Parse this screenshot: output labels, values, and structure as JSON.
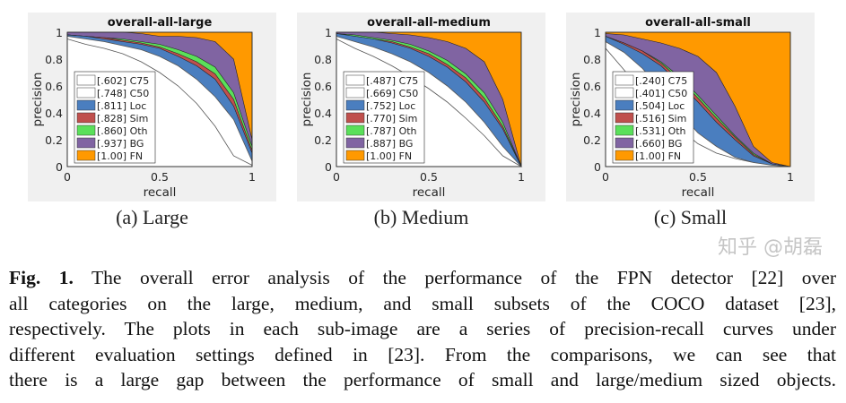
{
  "chart_data": [
    {
      "type": "area",
      "title": "overall-all-large",
      "subcaption": "(a) Large",
      "xlabel": "recall",
      "ylabel": "precision",
      "xlim": [
        0,
        1
      ],
      "ylim": [
        0,
        1
      ],
      "xticks": [
        "0",
        "0.5",
        "1"
      ],
      "yticks": [
        "0",
        "0.2",
        "0.4",
        "0.6",
        "0.8",
        "1"
      ],
      "legend_position": "lower-left",
      "x": [
        0,
        0.1,
        0.2,
        0.3,
        0.4,
        0.5,
        0.6,
        0.7,
        0.8,
        0.9,
        1.0
      ],
      "series": [
        {
          "name": "[1.00] FN",
          "color": "#ff9900",
          "values": [
            1,
            1,
            1,
            1,
            1,
            1,
            1,
            1,
            1,
            1,
            1
          ]
        },
        {
          "name": "[.937] BG",
          "color": "#8064a2",
          "values": [
            1,
            1,
            1,
            1,
            0.99,
            0.97,
            0.97,
            0.96,
            0.93,
            0.8,
            0.2
          ]
        },
        {
          "name": "[.860] Oth",
          "color": "#5ae05a",
          "values": [
            0.98,
            0.97,
            0.96,
            0.95,
            0.93,
            0.91,
            0.87,
            0.82,
            0.74,
            0.55,
            0.15
          ]
        },
        {
          "name": "[.828] Sim",
          "color": "#c0504d",
          "values": [
            0.98,
            0.97,
            0.96,
            0.94,
            0.92,
            0.89,
            0.84,
            0.78,
            0.69,
            0.5,
            0.12
          ]
        },
        {
          "name": "[.811] Loc",
          "color": "#4a7ebf",
          "values": [
            0.98,
            0.97,
            0.95,
            0.93,
            0.91,
            0.88,
            0.82,
            0.75,
            0.65,
            0.45,
            0.1
          ]
        },
        {
          "name": "[.748] C50",
          "color": "#ffffff",
          "values": [
            0.97,
            0.95,
            0.93,
            0.9,
            0.87,
            0.82,
            0.75,
            0.65,
            0.52,
            0.35,
            0.04
          ]
        },
        {
          "name": "[.602] C75",
          "color": "#ffffff",
          "values": [
            0.95,
            0.91,
            0.88,
            0.84,
            0.78,
            0.7,
            0.6,
            0.47,
            0.3,
            0.08,
            0.01
          ]
        }
      ]
    },
    {
      "type": "area",
      "title": "overall-all-medium",
      "subcaption": "(b) Medium",
      "xlabel": "recall",
      "ylabel": "precision",
      "xlim": [
        0,
        1
      ],
      "ylim": [
        0,
        1
      ],
      "xticks": [
        "0",
        "0.5",
        "1"
      ],
      "yticks": [
        "0",
        "0.2",
        "0.4",
        "0.6",
        "0.8",
        "1"
      ],
      "legend_position": "lower-left",
      "x": [
        0,
        0.1,
        0.2,
        0.3,
        0.4,
        0.5,
        0.6,
        0.7,
        0.8,
        0.9,
        1.0
      ],
      "series": [
        {
          "name": "[1.00] FN",
          "color": "#ff9900",
          "values": [
            1,
            1,
            1,
            1,
            1,
            1,
            1,
            1,
            1,
            1,
            1
          ]
        },
        {
          "name": "[.887] BG",
          "color": "#8064a2",
          "values": [
            1,
            1,
            1,
            0.99,
            0.98,
            0.96,
            0.93,
            0.88,
            0.78,
            0.5,
            0
          ]
        },
        {
          "name": "[.787] Oth",
          "color": "#5ae05a",
          "values": [
            0.99,
            0.98,
            0.96,
            0.94,
            0.91,
            0.86,
            0.79,
            0.69,
            0.55,
            0.33,
            0
          ]
        },
        {
          "name": "[.770] Sim",
          "color": "#c0504d",
          "values": [
            0.99,
            0.97,
            0.95,
            0.93,
            0.89,
            0.84,
            0.76,
            0.66,
            0.51,
            0.3,
            0
          ]
        },
        {
          "name": "[.752] Loc",
          "color": "#4a7ebf",
          "values": [
            0.99,
            0.97,
            0.95,
            0.92,
            0.88,
            0.82,
            0.74,
            0.63,
            0.48,
            0.28,
            0
          ]
        },
        {
          "name": "[.669] C50",
          "color": "#ffffff",
          "values": [
            0.97,
            0.93,
            0.89,
            0.84,
            0.78,
            0.7,
            0.6,
            0.48,
            0.33,
            0.15,
            0
          ]
        },
        {
          "name": "[.487] C75",
          "color": "#ffffff",
          "values": [
            0.95,
            0.88,
            0.82,
            0.75,
            0.67,
            0.58,
            0.48,
            0.36,
            0.23,
            0.08,
            0
          ]
        }
      ]
    },
    {
      "type": "area",
      "title": "overall-all-small",
      "subcaption": "(c) Small",
      "xlabel": "recall",
      "ylabel": "precision",
      "xlim": [
        0,
        1
      ],
      "ylim": [
        0,
        1
      ],
      "xticks": [
        "0",
        "0.5",
        "1"
      ],
      "yticks": [
        "0",
        "0.2",
        "0.4",
        "0.6",
        "0.8",
        "1"
      ],
      "legend_position": "lower-left",
      "x": [
        0,
        0.1,
        0.2,
        0.3,
        0.4,
        0.5,
        0.6,
        0.7,
        0.8,
        0.9,
        1.0
      ],
      "series": [
        {
          "name": "[1.00] FN",
          "color": "#ff9900",
          "values": [
            1,
            1,
            1,
            1,
            1,
            1,
            1,
            1,
            1,
            1,
            1
          ]
        },
        {
          "name": "[.660] BG",
          "color": "#8064a2",
          "values": [
            0.99,
            0.98,
            0.95,
            0.92,
            0.88,
            0.82,
            0.7,
            0.45,
            0.15,
            0.03,
            0
          ]
        },
        {
          "name": "[.531] Oth",
          "color": "#5ae05a",
          "values": [
            0.97,
            0.92,
            0.86,
            0.78,
            0.67,
            0.53,
            0.38,
            0.23,
            0.1,
            0.02,
            0
          ]
        },
        {
          "name": "[.516] Sim",
          "color": "#c0504d",
          "values": [
            0.97,
            0.92,
            0.86,
            0.77,
            0.65,
            0.51,
            0.36,
            0.22,
            0.09,
            0.02,
            0
          ]
        },
        {
          "name": "[.504] Loc",
          "color": "#4a7ebf",
          "values": [
            0.97,
            0.91,
            0.84,
            0.75,
            0.62,
            0.48,
            0.33,
            0.2,
            0.08,
            0.02,
            0
          ]
        },
        {
          "name": "[.401] C50",
          "color": "#ffffff",
          "values": [
            0.93,
            0.85,
            0.73,
            0.57,
            0.4,
            0.25,
            0.15,
            0.07,
            0.03,
            0.01,
            0
          ]
        },
        {
          "name": "[.240] C75",
          "color": "#ffffff",
          "values": [
            0.88,
            0.72,
            0.55,
            0.4,
            0.28,
            0.17,
            0.1,
            0.06,
            0.03,
            0.01,
            0
          ]
        }
      ]
    }
  ],
  "caption": {
    "label": "Fig. 1.",
    "lines": [
      "The overall error analysis of the performance of the FPN detector [22] over",
      "all categories on the large, medium, and small subsets of the COCO dataset [23],",
      "respectively. The plots in each sub-image are a series of precision-recall curves under",
      "different evaluation settings defined in [23]. From the comparisons, we can see that",
      "there is a large gap between the performance of small and large/medium sized objects."
    ]
  },
  "watermark": "知乎 @胡磊"
}
